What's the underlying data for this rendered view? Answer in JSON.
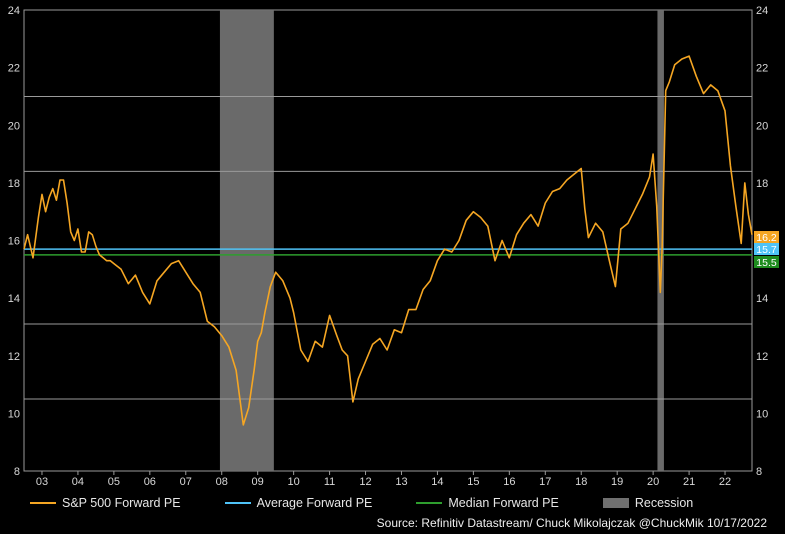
{
  "chart_data": {
    "type": "line",
    "xlabel": "",
    "ylabel": "",
    "ylim": [
      8,
      24
    ],
    "yticks": [
      8,
      10,
      12,
      14,
      16,
      18,
      20,
      22,
      24
    ],
    "xlim": [
      2002.5,
      2022.75
    ],
    "xticks": [
      {
        "label": "03",
        "pos": 2003.0
      },
      {
        "label": "04",
        "pos": 2004.0
      },
      {
        "label": "05",
        "pos": 2005.0
      },
      {
        "label": "06",
        "pos": 2006.0
      },
      {
        "label": "07",
        "pos": 2007.0
      },
      {
        "label": "08",
        "pos": 2008.0
      },
      {
        "label": "09",
        "pos": 2009.0
      },
      {
        "label": "10",
        "pos": 2010.0
      },
      {
        "label": "11",
        "pos": 2011.0
      },
      {
        "label": "12",
        "pos": 2012.0
      },
      {
        "label": "13",
        "pos": 2013.0
      },
      {
        "label": "14",
        "pos": 2014.0
      },
      {
        "label": "15",
        "pos": 2015.0
      },
      {
        "label": "16",
        "pos": 2016.0
      },
      {
        "label": "17",
        "pos": 2017.0
      },
      {
        "label": "18",
        "pos": 2018.0
      },
      {
        "label": "19",
        "pos": 2019.0
      },
      {
        "label": "20",
        "pos": 2020.0
      },
      {
        "label": "21",
        "pos": 2021.0
      },
      {
        "label": "22",
        "pos": 2022.0
      }
    ],
    "grid_y_values": [
      10.5,
      13.1,
      18.4,
      21.0
    ],
    "recessions": [
      {
        "start": 2007.95,
        "end": 2009.45
      },
      {
        "start": 2020.12,
        "end": 2020.3
      }
    ],
    "series": [
      {
        "name": "S&P 500 Forward PE",
        "color": "#f5a623",
        "x": [
          2002.5,
          2002.6,
          2002.75,
          2002.9,
          2003.0,
          2003.1,
          2003.2,
          2003.3,
          2003.4,
          2003.5,
          2003.6,
          2003.7,
          2003.8,
          2003.9,
          2004.0,
          2004.1,
          2004.2,
          2004.3,
          2004.4,
          2004.5,
          2004.6,
          2004.7,
          2004.8,
          2004.9,
          2005.0,
          2005.2,
          2005.4,
          2005.6,
          2005.8,
          2006.0,
          2006.2,
          2006.4,
          2006.6,
          2006.8,
          2007.0,
          2007.2,
          2007.4,
          2007.6,
          2007.8,
          2008.0,
          2008.2,
          2008.4,
          2008.6,
          2008.75,
          2008.9,
          2009.0,
          2009.1,
          2009.2,
          2009.35,
          2009.5,
          2009.7,
          2009.9,
          2010.0,
          2010.2,
          2010.4,
          2010.6,
          2010.8,
          2011.0,
          2011.2,
          2011.35,
          2011.5,
          2011.65,
          2011.8,
          2012.0,
          2012.2,
          2012.4,
          2012.6,
          2012.8,
          2013.0,
          2013.2,
          2013.4,
          2013.6,
          2013.8,
          2014.0,
          2014.2,
          2014.4,
          2014.6,
          2014.8,
          2015.0,
          2015.2,
          2015.4,
          2015.6,
          2015.8,
          2016.0,
          2016.2,
          2016.4,
          2016.6,
          2016.8,
          2017.0,
          2017.2,
          2017.4,
          2017.6,
          2017.8,
          2018.0,
          2018.1,
          2018.2,
          2018.4,
          2018.6,
          2018.8,
          2018.95,
          2019.1,
          2019.3,
          2019.5,
          2019.7,
          2019.9,
          2020.0,
          2020.1,
          2020.2,
          2020.25,
          2020.35,
          2020.45,
          2020.6,
          2020.8,
          2021.0,
          2021.2,
          2021.4,
          2021.6,
          2021.8,
          2022.0,
          2022.15,
          2022.3,
          2022.45,
          2022.55,
          2022.65,
          2022.75
        ],
        "values": [
          15.7,
          16.2,
          15.4,
          16.8,
          17.6,
          17.0,
          17.5,
          17.8,
          17.4,
          18.1,
          18.1,
          17.3,
          16.3,
          16.0,
          16.4,
          15.6,
          15.6,
          16.3,
          16.2,
          15.8,
          15.5,
          15.4,
          15.3,
          15.3,
          15.2,
          15.0,
          14.5,
          14.8,
          14.2,
          13.8,
          14.6,
          14.9,
          15.2,
          15.3,
          14.9,
          14.5,
          14.2,
          13.2,
          13.0,
          12.7,
          12.3,
          11.5,
          9.6,
          10.2,
          11.5,
          12.5,
          12.8,
          13.5,
          14.4,
          14.9,
          14.6,
          14.0,
          13.5,
          12.2,
          11.8,
          12.5,
          12.3,
          13.4,
          12.7,
          12.2,
          12.0,
          10.4,
          11.2,
          11.8,
          12.4,
          12.6,
          12.2,
          12.9,
          12.8,
          13.6,
          13.6,
          14.3,
          14.6,
          15.3,
          15.7,
          15.6,
          16.0,
          16.7,
          17.0,
          16.8,
          16.5,
          15.3,
          16.0,
          15.4,
          16.2,
          16.6,
          16.9,
          16.5,
          17.3,
          17.7,
          17.8,
          18.1,
          18.3,
          18.5,
          17.1,
          16.1,
          16.6,
          16.3,
          15.2,
          14.4,
          16.4,
          16.6,
          17.1,
          17.6,
          18.2,
          19.0,
          17.2,
          14.2,
          15.7,
          21.2,
          21.5,
          22.1,
          22.3,
          22.4,
          21.7,
          21.1,
          21.4,
          21.2,
          20.5,
          18.6,
          17.2,
          15.9,
          18.0,
          16.9,
          16.2
        ]
      },
      {
        "name": "Average Forward PE",
        "color": "#4fc3f7",
        "value": 15.7
      },
      {
        "name": "Median Forward PE",
        "color": "#2e9e2e",
        "value": 15.5
      },
      {
        "name": "Recession",
        "color": "#707070"
      }
    ],
    "end_labels": [
      {
        "text": "16.2",
        "value": 16.2,
        "color": "#f5a623",
        "textcolor": "#ffffff"
      },
      {
        "text": "15.7",
        "value": 15.7,
        "color": "#4fc3f7",
        "textcolor": "#ffffff"
      },
      {
        "text": "15.5",
        "value": 15.5,
        "color": "#1e8c1e",
        "textcolor": "#ffffff"
      }
    ]
  },
  "legend": {
    "sp500": "S&P 500 Forward PE",
    "average": "Average Forward PE",
    "median": "Median Forward PE",
    "recession": "Recession"
  },
  "source": "Source: Refinitiv Datastream/ Chuck Mikolajczak @ChuckMik 10/17/2022"
}
